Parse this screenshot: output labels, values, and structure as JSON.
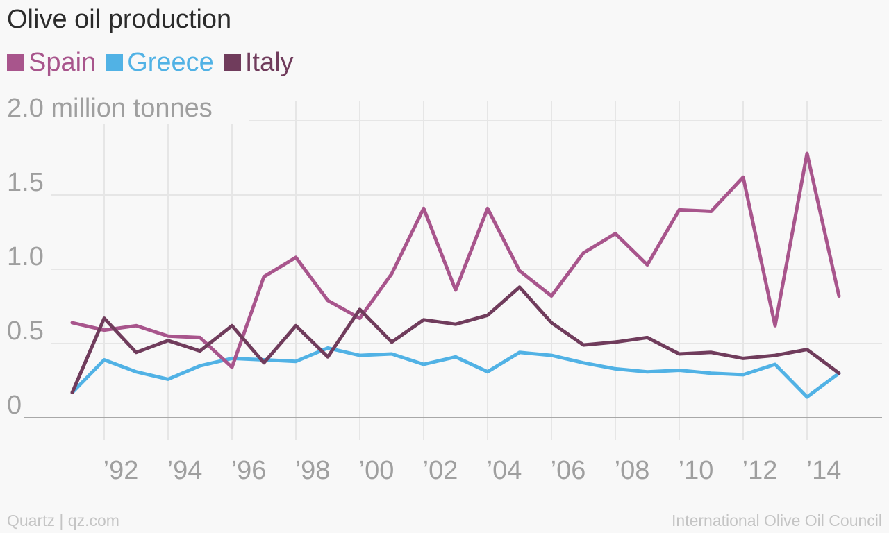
{
  "title": "Olive oil production",
  "footer": {
    "left": "Quartz | qz.com",
    "right": "International Olive Oil Council"
  },
  "chart_data": {
    "type": "line",
    "title": "Olive oil production",
    "ylabel_top": "2.0 million tonnes",
    "y_tick_labels": [
      "0",
      "0.5",
      "1.0",
      "1.5",
      "2.0 million tonnes"
    ],
    "y_ticks": [
      0,
      0.5,
      1.0,
      1.5,
      2.0
    ],
    "ylim": [
      0,
      2.0
    ],
    "x": [
      1991,
      1992,
      1993,
      1994,
      1995,
      1996,
      1997,
      1998,
      1999,
      2000,
      2001,
      2002,
      2003,
      2004,
      2005,
      2006,
      2007,
      2008,
      2009,
      2010,
      2011,
      2012,
      2013,
      2014,
      2015
    ],
    "xlim": [
      1990,
      2016
    ],
    "x_ticks": [
      1992,
      1994,
      1996,
      1998,
      2000,
      2002,
      2004,
      2006,
      2008,
      2010,
      2012,
      2014
    ],
    "x_tick_labels": [
      "’92",
      "’94",
      "’96",
      "’98",
      "’00",
      "’02",
      "’04",
      "’06",
      "’08",
      "’10",
      "’12",
      "’14"
    ],
    "grid": true,
    "legend_position": "top-left",
    "series": [
      {
        "name": "Spain",
        "color": "#a8558c",
        "values": [
          0.64,
          0.59,
          0.62,
          0.55,
          0.54,
          0.34,
          0.95,
          1.08,
          0.79,
          0.67,
          0.97,
          1.41,
          0.86,
          1.41,
          0.99,
          0.82,
          1.11,
          1.24,
          1.03,
          1.4,
          1.39,
          1.62,
          0.62,
          1.78,
          0.82
        ]
      },
      {
        "name": "Greece",
        "color": "#51b2e5",
        "values": [
          0.17,
          0.39,
          0.31,
          0.26,
          0.35,
          0.4,
          0.39,
          0.38,
          0.47,
          0.42,
          0.43,
          0.36,
          0.41,
          0.31,
          0.44,
          0.42,
          0.37,
          0.33,
          0.31,
          0.32,
          0.3,
          0.29,
          0.36,
          0.14,
          0.3
        ]
      },
      {
        "name": "Italy",
        "color": "#703c5c",
        "values": [
          0.17,
          0.67,
          0.44,
          0.52,
          0.45,
          0.62,
          0.37,
          0.62,
          0.41,
          0.73,
          0.51,
          0.66,
          0.63,
          0.69,
          0.88,
          0.64,
          0.49,
          0.51,
          0.54,
          0.43,
          0.44,
          0.4,
          0.42,
          0.46,
          0.3
        ]
      }
    ]
  }
}
